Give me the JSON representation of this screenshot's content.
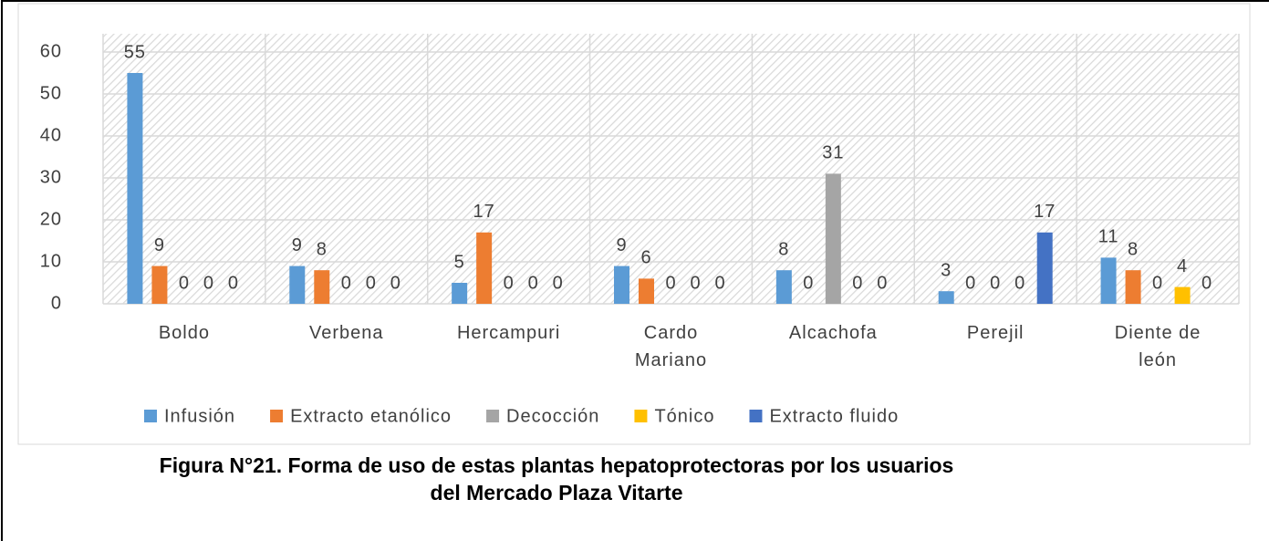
{
  "chart_data": {
    "type": "bar",
    "title": "Figura N°21. Forma de uso de  estas plantas hepatoprotectoras por los usuarios del Mercado Plaza Vitarte",
    "categories": [
      "Boldo",
      "Verbena",
      "Hercampuri",
      "Cardo Mariano",
      "Alcachofa",
      "Perejil",
      "Diente de león"
    ],
    "series": [
      {
        "name": "Infusión",
        "color": "#5b9bd5",
        "values": [
          55,
          9,
          5,
          9,
          8,
          3,
          11
        ]
      },
      {
        "name": "Extracto etanólico",
        "color": "#ed7d31",
        "values": [
          9,
          8,
          17,
          6,
          0,
          0,
          8
        ]
      },
      {
        "name": "Decocción",
        "color": "#a5a5a5",
        "values": [
          0,
          0,
          0,
          0,
          31,
          0,
          0
        ]
      },
      {
        "name": "Tónico",
        "color": "#ffc000",
        "values": [
          0,
          0,
          0,
          0,
          0,
          0,
          4
        ]
      },
      {
        "name": "Extracto fluido",
        "color": "#4472c4",
        "values": [
          0,
          0,
          0,
          0,
          0,
          17,
          0
        ]
      }
    ],
    "ylim": [
      0,
      60
    ],
    "yticks": [
      0,
      10,
      20,
      30,
      40,
      50,
      60
    ],
    "grid": true,
    "legend": "bottom"
  }
}
